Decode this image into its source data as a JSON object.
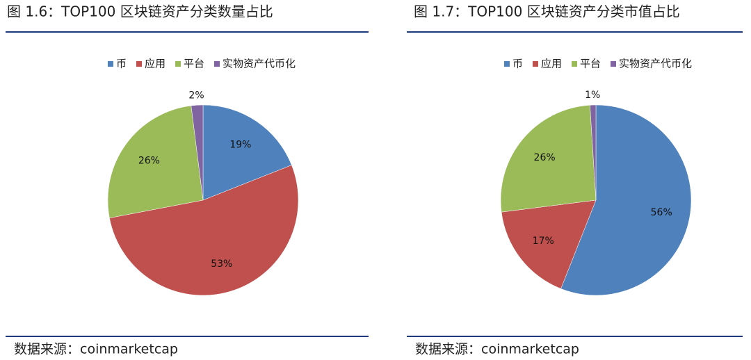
{
  "chart_data": [
    {
      "type": "pie",
      "title": "图 1.6：TOP100 区块链资产分类数量占比",
      "categories": [
        "币",
        "应用",
        "平台",
        "实物资产代币化"
      ],
      "values": [
        19,
        53,
        26,
        2
      ],
      "value_labels": [
        "19%",
        "53%",
        "26%",
        "2%"
      ],
      "colors": [
        "#4f81bd",
        "#c0504d",
        "#9bbb59",
        "#8064a2"
      ],
      "legend": "top",
      "source": "数据来源：coinmarketcap"
    },
    {
      "type": "pie",
      "title": "图 1.7：TOP100 区块链资产分类市值占比",
      "categories": [
        "币",
        "应用",
        "平台",
        "实物资产代币化"
      ],
      "values": [
        56,
        17,
        26,
        1
      ],
      "value_labels": [
        "56%",
        "17%",
        "26%",
        "1%"
      ],
      "colors": [
        "#4f81bd",
        "#c0504d",
        "#9bbb59",
        "#8064a2"
      ],
      "legend": "top",
      "source": "数据来源：coinmarketcap"
    }
  ]
}
